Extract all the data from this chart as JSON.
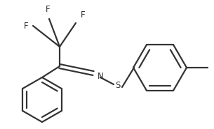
{
  "bg_color": "#ffffff",
  "line_color": "#333333",
  "line_width": 1.6,
  "font_size": 8.5,
  "font_color": "#333333",
  "figsize": [
    3.05,
    1.85
  ],
  "dpi": 100,
  "xlim": [
    0,
    305
  ],
  "ylim": [
    0,
    185
  ]
}
